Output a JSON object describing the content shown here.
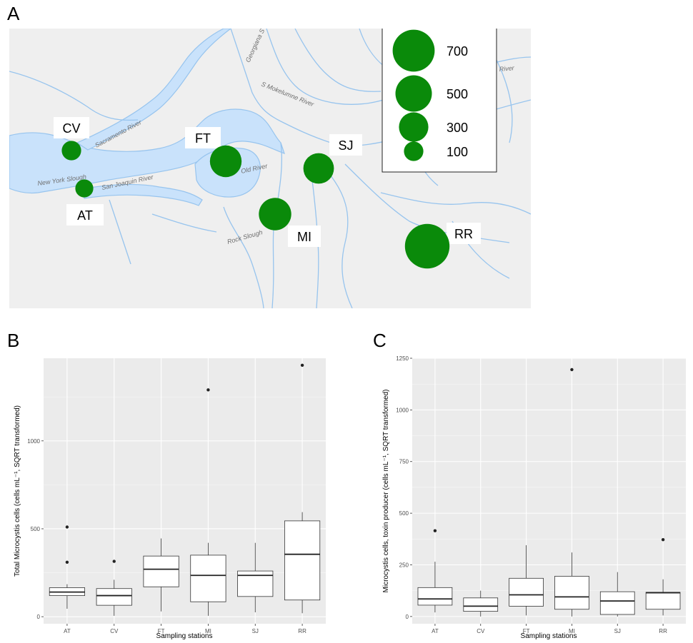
{
  "panels": {
    "a": {
      "letter": "A"
    },
    "b": {
      "letter": "B"
    },
    "c": {
      "letter": "C"
    }
  },
  "map": {
    "river_labels": [
      "Sacramento River",
      "San Joaquin River",
      "New York Slough",
      "Old River",
      "Rock Slough",
      "S Mokelumne River",
      "Georgiana S",
      "River"
    ],
    "stations": [
      {
        "name": "CV",
        "value": 100
      },
      {
        "name": "AT",
        "value": 80
      },
      {
        "name": "FT",
        "value": 360
      },
      {
        "name": "SJ",
        "value": 330
      },
      {
        "name": "MI",
        "value": 380
      },
      {
        "name": "RR",
        "value": 800
      }
    ],
    "legend": [
      {
        "label": "700",
        "value": 700
      },
      {
        "label": "500",
        "value": 500
      },
      {
        "label": "300",
        "value": 300
      },
      {
        "label": "100",
        "value": 100
      }
    ],
    "colors": {
      "bubble": "#0a8a0a",
      "water": "#c9e2fb",
      "river_line": "#97c4ee",
      "land": "#efefef"
    }
  },
  "chart_data": [
    {
      "type": "box",
      "xlabel": "Sampling stations",
      "ylabel": "Total Microcystis cells (cells mL⁻¹, SQRT transformed)",
      "categories": [
        "AT",
        "CV",
        "FT",
        "MI",
        "SJ",
        "RR"
      ],
      "ylim": [
        -40,
        1470
      ],
      "yticks": [
        0,
        500,
        1000
      ],
      "grid": true,
      "boxes": [
        {
          "name": "AT",
          "whisker_low": 45,
          "q1": 120,
          "median": 140,
          "q3": 165,
          "whisker_high": 185,
          "outliers": [
            310,
            510
          ]
        },
        {
          "name": "CV",
          "whisker_low": 5,
          "q1": 65,
          "median": 120,
          "q3": 160,
          "whisker_high": 210,
          "outliers": [
            315
          ]
        },
        {
          "name": "FT",
          "whisker_low": 30,
          "q1": 170,
          "median": 270,
          "q3": 345,
          "whisker_high": 445,
          "outliers": []
        },
        {
          "name": "MI",
          "whisker_low": 5,
          "q1": 85,
          "median": 235,
          "q3": 350,
          "whisker_high": 420,
          "outliers": [
            1290
          ]
        },
        {
          "name": "SJ",
          "whisker_low": 25,
          "q1": 115,
          "median": 235,
          "q3": 260,
          "whisker_high": 420,
          "outliers": []
        },
        {
          "name": "RR",
          "whisker_low": 20,
          "q1": 95,
          "median": 355,
          "q3": 545,
          "whisker_high": 595,
          "outliers": [
            1430
          ]
        }
      ]
    },
    {
      "type": "box",
      "xlabel": "Sampling stations",
      "ylabel": "Microcystis cells, toxin producer (cells mL⁻¹, SQRT transformed)",
      "categories": [
        "AT",
        "CV",
        "FT",
        "MI",
        "SJ",
        "RR"
      ],
      "ylim": [
        -35,
        1250
      ],
      "yticks": [
        0,
        250,
        500,
        750,
        1000,
        1250
      ],
      "grid": true,
      "boxes": [
        {
          "name": "AT",
          "whisker_low": 20,
          "q1": 55,
          "median": 85,
          "q3": 140,
          "whisker_high": 265,
          "outliers": [
            415
          ]
        },
        {
          "name": "CV",
          "whisker_low": 0,
          "q1": 25,
          "median": 50,
          "q3": 90,
          "whisker_high": 125,
          "outliers": []
        },
        {
          "name": "FT",
          "whisker_low": 5,
          "q1": 50,
          "median": 105,
          "q3": 185,
          "whisker_high": 345,
          "outliers": []
        },
        {
          "name": "MI",
          "whisker_low": 0,
          "q1": 35,
          "median": 95,
          "q3": 195,
          "whisker_high": 310,
          "outliers": [
            1195
          ]
        },
        {
          "name": "SJ",
          "whisker_low": 0,
          "q1": 10,
          "median": 75,
          "q3": 120,
          "whisker_high": 215,
          "outliers": []
        },
        {
          "name": "RR",
          "whisker_low": 5,
          "q1": 35,
          "median": 115,
          "q3": 117,
          "whisker_high": 180,
          "outliers": [
            372
          ]
        }
      ]
    }
  ]
}
